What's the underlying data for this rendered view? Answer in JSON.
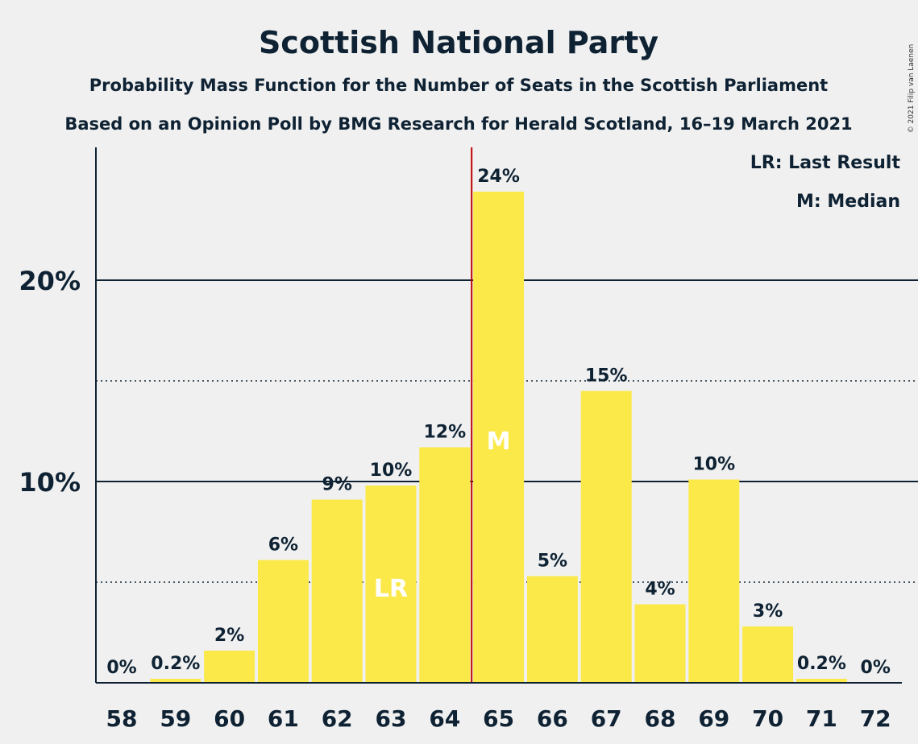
{
  "chart_data": {
    "type": "bar",
    "title": "Scottish National Party",
    "subtitle1": "Probability Mass Function for the Number of Seats in the Scottish Parliament",
    "subtitle2": "Based on an Opinion Poll by BMG Research for Herald Scotland, 16–19 March 2021",
    "copyright": "© 2021 Filip van Laenen",
    "categories": [
      "58",
      "59",
      "60",
      "61",
      "62",
      "63",
      "64",
      "65",
      "66",
      "67",
      "68",
      "69",
      "70",
      "71",
      "72"
    ],
    "values": [
      0,
      0.2,
      1.6,
      6.1,
      9.1,
      9.8,
      11.7,
      24.4,
      5.3,
      14.5,
      3.9,
      10.1,
      2.8,
      0.2,
      0
    ],
    "data_labels": [
      "0%",
      "0.2%",
      "2%",
      "6%",
      "9%",
      "10%",
      "12%",
      "24%",
      "5%",
      "15%",
      "4%",
      "10%",
      "3%",
      "0.2%",
      "0%"
    ],
    "ylim": [
      0,
      26.6
    ],
    "yticks": [
      {
        "value": 10,
        "label": "10%"
      },
      {
        "value": 20,
        "label": "20%"
      }
    ],
    "minor_gridlines": [
      5,
      15
    ],
    "last_result": {
      "category": "63",
      "label": "LR"
    },
    "median": {
      "category": "65",
      "label": "M"
    },
    "legend": [
      "LR: Last Result",
      "M: Median"
    ],
    "colors": {
      "bar": "#fbe94a",
      "median_line": "#c00000",
      "axis": "#0e2233",
      "background": "#f0f0f0"
    }
  }
}
